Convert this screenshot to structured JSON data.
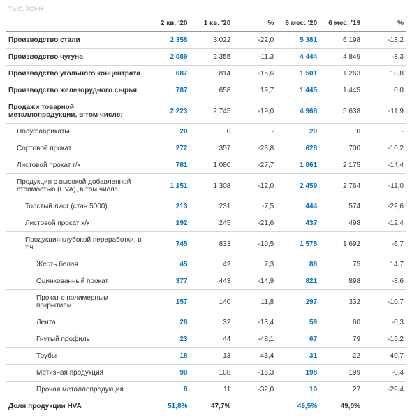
{
  "unit": "тыс. тонн",
  "cols": [
    "2 кв. '20",
    "1 кв. '20",
    "%",
    "6 мес. '20",
    "6 мес. '19",
    "%"
  ],
  "rows": [
    {
      "l": "Производство стали",
      "style": "main",
      "v": [
        "2 358",
        "3 022",
        "-22,0",
        "5 381",
        "6 198",
        "-13,2"
      ]
    },
    {
      "l": "Производство чугуна",
      "style": "main",
      "v": [
        "2 089",
        "2 355",
        "-11,3",
        "4 444",
        "4 849",
        "-8,3"
      ]
    },
    {
      "l": "Производство угольного концентрата",
      "style": "main",
      "v": [
        "687",
        "814",
        "-15,6",
        "1 501",
        "1 263",
        "18,8"
      ]
    },
    {
      "l": "Производство железорудного сырья",
      "style": "main",
      "v": [
        "787",
        "658",
        "19,7",
        "1 445",
        "1 445",
        "0,0"
      ]
    },
    {
      "l": "Продажи товарной металлопродукции, в том числе:",
      "style": "main",
      "v": [
        "2 223",
        "2 745",
        "-19,0",
        "4 968",
        "5 638",
        "-11,9"
      ]
    },
    {
      "l": "Полуфабрикаты",
      "style": "sub",
      "indent": 1,
      "v": [
        "20",
        "0",
        "-",
        "20",
        "0",
        "-"
      ]
    },
    {
      "l": "Сортовой прокат",
      "style": "sub",
      "indent": 1,
      "v": [
        "272",
        "357",
        "-23,8",
        "628",
        "700",
        "-10,2"
      ]
    },
    {
      "l": "Листовой прокат г/к",
      "style": "sub",
      "indent": 1,
      "v": [
        "781",
        "1 080",
        "-27,7",
        "1 861",
        "2 175",
        "-14,4"
      ]
    },
    {
      "l": "Продукция с высокой добавленной стоимостью (HVA), в том числе:",
      "style": "sub",
      "indent": 1,
      "v": [
        "1 151",
        "1 308",
        "-12,0",
        "2 459",
        "2 764",
        "-11,0"
      ]
    },
    {
      "l": "Толстый лист (стан 5000)",
      "style": "sub",
      "indent": 2,
      "v": [
        "213",
        "231",
        "-7,5",
        "444",
        "574",
        "-22,6"
      ]
    },
    {
      "l": "Листовой прокат х/к",
      "style": "sub",
      "indent": 2,
      "v": [
        "192",
        "245",
        "-21,6",
        "437",
        "498",
        "-12,4"
      ]
    },
    {
      "l": "Продукция глубокой переработки, в т.ч.:",
      "style": "sub",
      "indent": 2,
      "v": [
        "745",
        "833",
        "-10,5",
        "1 578",
        "1 692",
        "-6,7"
      ]
    },
    {
      "l": "Жесть белая",
      "style": "sub",
      "indent": 3,
      "v": [
        "45",
        "42",
        "7,3",
        "86",
        "75",
        "14,7"
      ]
    },
    {
      "l": "Оцинкованный прокат",
      "style": "sub",
      "indent": 3,
      "v": [
        "377",
        "443",
        "-14,9",
        "821",
        "898",
        "-8,6"
      ]
    },
    {
      "l": "Прокат с полимерным покрытием",
      "style": "sub",
      "indent": 3,
      "v": [
        "157",
        "140",
        "11,8",
        "297",
        "332",
        "-10,7"
      ]
    },
    {
      "l": "Лента",
      "style": "sub",
      "indent": 3,
      "v": [
        "28",
        "32",
        "-13,4",
        "59",
        "60",
        "-0,3"
      ]
    },
    {
      "l": "Гнутый профиль",
      "style": "sub",
      "indent": 3,
      "v": [
        "23",
        "44",
        "-48,1",
        "67",
        "79",
        "-15,2"
      ]
    },
    {
      "l": "Трубы",
      "style": "sub",
      "indent": 3,
      "v": [
        "18",
        "13",
        "43,4",
        "31",
        "22",
        "40,7"
      ]
    },
    {
      "l": "Метизная продукция",
      "style": "sub",
      "indent": 3,
      "v": [
        "90",
        "108",
        "-16,3",
        "198",
        "199",
        "-0,4"
      ]
    },
    {
      "l": "Прочая металлопродукция",
      "style": "sub",
      "indent": 3,
      "v": [
        "8",
        "11",
        "-32,0",
        "19",
        "27",
        "-29,4"
      ]
    },
    {
      "l": "Доля продукции HVA",
      "style": "summary",
      "v": [
        "51,8%",
        "47,7%",
        "",
        "49,5%",
        "49,0%",
        ""
      ]
    }
  ],
  "colors": {
    "highlight": "#0070c0",
    "grid": "#d5d5d5",
    "text": "#333333",
    "unit": "#bbbbbb"
  }
}
